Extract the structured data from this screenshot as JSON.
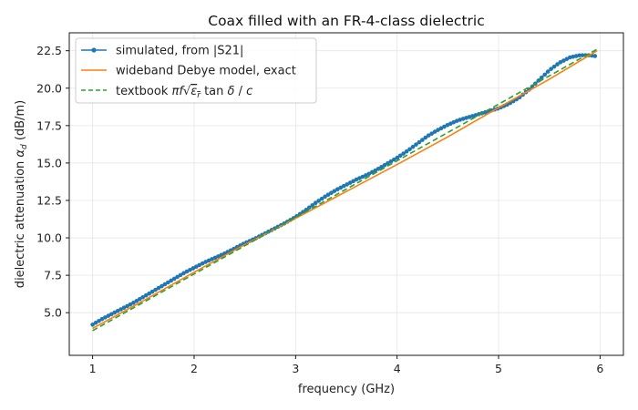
{
  "chart_data": {
    "type": "line",
    "title": "Coax filled with an FR-4-class dielectric",
    "xlabel": "frequency (GHz)",
    "ylabel": "dielectric attenuation α_d (dB/m)",
    "xlim": [
      0.77,
      6.23
    ],
    "ylim": [
      2.15,
      23.7
    ],
    "xticks": [
      1,
      2,
      3,
      4,
      5,
      6
    ],
    "yticks": [
      5.0,
      7.5,
      10.0,
      12.5,
      15.0,
      17.5,
      20.0,
      22.5
    ],
    "xtick_labels": [
      "1",
      "2",
      "3",
      "4",
      "5",
      "6"
    ],
    "ytick_labels": [
      "5.0",
      "7.5",
      "10.0",
      "12.5",
      "15.0",
      "17.5",
      "20.0",
      "22.5"
    ],
    "grid": true,
    "legend_position": "top-left",
    "series": [
      {
        "name": "simulated, from |S21|",
        "color": "#1f77b4",
        "style": "line-markers",
        "x": [
          1.0,
          1.1,
          1.2,
          1.3,
          1.4,
          1.5,
          1.6,
          1.7,
          1.8,
          1.9,
          2.0,
          2.1,
          2.2,
          2.3,
          2.4,
          2.5,
          2.6,
          2.7,
          2.8,
          2.9,
          3.0,
          3.1,
          3.2,
          3.3,
          3.4,
          3.5,
          3.6,
          3.7,
          3.8,
          3.9,
          4.0,
          4.1,
          4.2,
          4.3,
          4.4,
          4.5,
          4.6,
          4.7,
          4.8,
          4.9,
          5.0,
          5.1,
          5.2,
          5.3,
          5.4,
          5.5,
          5.6,
          5.7,
          5.8,
          5.9,
          5.95
        ],
        "y": [
          4.2,
          4.6,
          4.95,
          5.3,
          5.65,
          6.05,
          6.45,
          6.85,
          7.25,
          7.65,
          8.0,
          8.35,
          8.65,
          8.95,
          9.3,
          9.65,
          9.95,
          10.3,
          10.65,
          11.0,
          11.4,
          11.85,
          12.35,
          12.8,
          13.2,
          13.55,
          13.9,
          14.2,
          14.55,
          14.95,
          15.35,
          15.8,
          16.3,
          16.8,
          17.2,
          17.55,
          17.85,
          18.05,
          18.25,
          18.45,
          18.65,
          18.95,
          19.35,
          19.9,
          20.55,
          21.2,
          21.7,
          22.05,
          22.2,
          22.2,
          22.15
        ]
      },
      {
        "name": "wideband Debye model, exact",
        "color": "#ff7f0e",
        "style": "line",
        "x": [
          1.0,
          1.5,
          2.0,
          2.5,
          3.0,
          3.5,
          4.0,
          4.5,
          5.0,
          5.5,
          5.97
        ],
        "y": [
          3.95,
          5.8,
          7.7,
          9.55,
          11.3,
          13.1,
          14.9,
          16.75,
          18.7,
          20.6,
          22.5
        ]
      },
      {
        "name": "textbook",
        "formula": "πf√ε_r tan δ / c",
        "color": "#2ca02c",
        "style": "dashed",
        "x": [
          1.0,
          5.97
        ],
        "y": [
          3.8,
          22.6
        ]
      }
    ]
  }
}
